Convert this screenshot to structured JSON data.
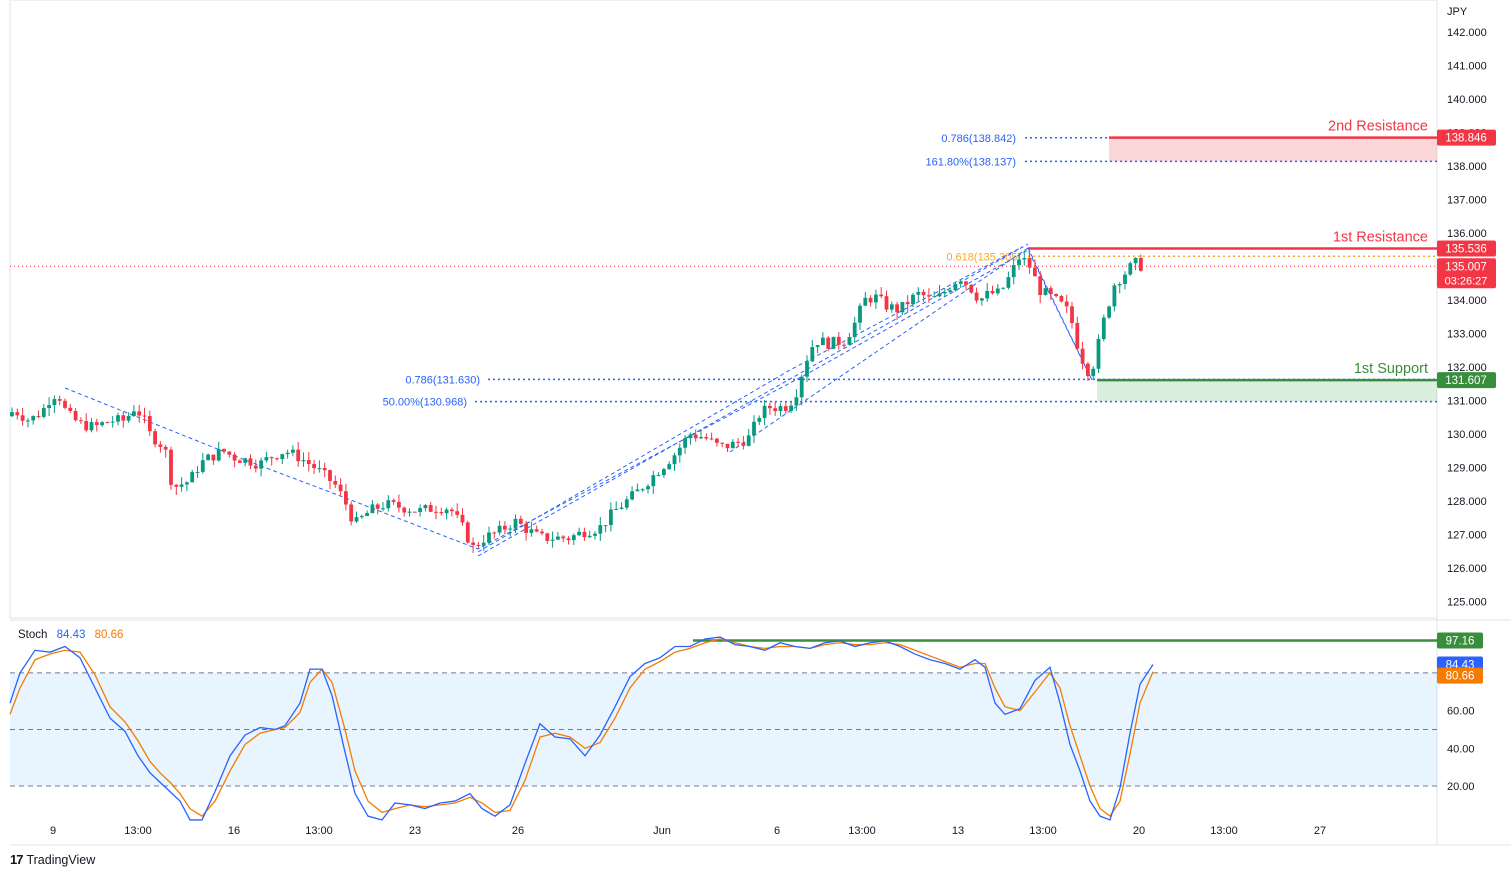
{
  "chart_data": {
    "type": "candlestick",
    "currency": "JPY",
    "price_axis_ticks": [
      "142.000",
      "141.000",
      "140.000",
      "139.000",
      "138.000",
      "137.000",
      "136.000",
      "135.000",
      "134.000",
      "133.000",
      "132.000",
      "131.000",
      "130.000",
      "129.000",
      "128.000",
      "127.000",
      "126.000",
      "125.000"
    ],
    "price_axis_values": [
      142,
      141,
      140,
      139,
      138,
      137,
      136,
      135,
      134,
      133,
      132,
      131,
      130,
      129,
      128,
      127,
      126,
      125
    ],
    "time_axis_labels": [
      "9",
      "13:00",
      "16",
      "13:00",
      "23",
      "26",
      "Jun",
      "6",
      "13:00",
      "13",
      "13:00",
      "20",
      "13:00",
      "27"
    ],
    "ylim": [
      124.5,
      142.7
    ],
    "current_price": "135.007",
    "countdown": "03:26:27",
    "levels": [
      {
        "label": "2nd Resistance",
        "price": "138.846",
        "color": "#f23645"
      },
      {
        "label": "1st Resistance",
        "price": "135.536",
        "color": "#f23645"
      },
      {
        "label": "1st Support",
        "price": "131.607",
        "color": "#388e3c"
      }
    ],
    "fib_labels": [
      {
        "text": "0.786(138.842)",
        "price": 138.842,
        "color": "#2962ff"
      },
      {
        "text": "161.80%(138.137)",
        "price": 138.137,
        "color": "#2962ff"
      },
      {
        "text": "0.618(135.305)",
        "price": 135.305,
        "color": "#f9a825"
      },
      {
        "text": "0.786(131.630)",
        "price": 131.63,
        "color": "#2962ff"
      },
      {
        "text": "50.00%(130.968)",
        "price": 130.968,
        "color": "#2962ff"
      }
    ],
    "price_anchors": [
      [
        0,
        130.3
      ],
      [
        8,
        130.5
      ],
      [
        20,
        130.7
      ],
      [
        35,
        130.4
      ],
      [
        48,
        130.7
      ],
      [
        58,
        131.2
      ],
      [
        65,
        131.1
      ],
      [
        72,
        130.6
      ],
      [
        85,
        130.3
      ],
      [
        100,
        130.2
      ],
      [
        115,
        130.4
      ],
      [
        130,
        130.4
      ],
      [
        140,
        130.8
      ],
      [
        148,
        130.5
      ],
      [
        155,
        130.0
      ],
      [
        170,
        129.6
      ],
      [
        178,
        128.4
      ],
      [
        186,
        128.5
      ],
      [
        195,
        128.6
      ],
      [
        205,
        129.1
      ],
      [
        215,
        129.3
      ],
      [
        228,
        129.5
      ],
      [
        240,
        129.3
      ],
      [
        255,
        129.2
      ],
      [
        265,
        129.1
      ],
      [
        275,
        129.3
      ],
      [
        290,
        129.5
      ],
      [
        305,
        129.3
      ],
      [
        320,
        129.0
      ],
      [
        340,
        128.5
      ],
      [
        350,
        128.0
      ],
      [
        360,
        127.3
      ],
      [
        375,
        127.7
      ],
      [
        390,
        127.9
      ],
      [
        410,
        127.8
      ],
      [
        425,
        127.7
      ],
      [
        440,
        127.8
      ],
      [
        455,
        127.8
      ],
      [
        470,
        127.1
      ],
      [
        478,
        126.6
      ],
      [
        490,
        126.9
      ],
      [
        505,
        127.1
      ],
      [
        520,
        127.4
      ],
      [
        535,
        127.1
      ],
      [
        545,
        126.9
      ],
      [
        560,
        126.9
      ],
      [
        575,
        126.9
      ],
      [
        590,
        127.1
      ],
      [
        605,
        127.2
      ],
      [
        620,
        127.7
      ],
      [
        640,
        128.2
      ],
      [
        660,
        128.8
      ],
      [
        680,
        129.4
      ],
      [
        695,
        130.0
      ],
      [
        710,
        129.9
      ],
      [
        725,
        129.6
      ],
      [
        740,
        129.7
      ],
      [
        755,
        129.9
      ],
      [
        765,
        130.6
      ],
      [
        775,
        130.8
      ],
      [
        790,
        130.8
      ],
      [
        800,
        131.1
      ],
      [
        810,
        132.1
      ],
      [
        820,
        132.8
      ],
      [
        835,
        132.7
      ],
      [
        850,
        132.8
      ],
      [
        860,
        133.3
      ],
      [
        870,
        134.0
      ],
      [
        880,
        134.1
      ],
      [
        893,
        133.8
      ],
      [
        905,
        133.7
      ],
      [
        915,
        134.0
      ],
      [
        925,
        134.2
      ],
      [
        935,
        134.0
      ],
      [
        945,
        134.1
      ],
      [
        955,
        134.4
      ],
      [
        965,
        134.7
      ],
      [
        975,
        134.4
      ],
      [
        985,
        134.0
      ],
      [
        995,
        134.2
      ],
      [
        1005,
        134.2
      ],
      [
        1015,
        134.7
      ],
      [
        1025,
        135.3
      ],
      [
        1035,
        135.0
      ],
      [
        1045,
        134.3
      ],
      [
        1055,
        134.1
      ],
      [
        1065,
        133.9
      ],
      [
        1075,
        133.6
      ],
      [
        1085,
        132.4
      ],
      [
        1095,
        131.8
      ],
      [
        1100,
        132.2
      ],
      [
        1110,
        133.5
      ],
      [
        1120,
        134.5
      ],
      [
        1130,
        134.8
      ],
      [
        1140,
        135.1
      ],
      [
        1148,
        135.0
      ]
    ],
    "stoch_k": [
      [
        0,
        64
      ],
      [
        10,
        80
      ],
      [
        25,
        92
      ],
      [
        40,
        91
      ],
      [
        55,
        94
      ],
      [
        70,
        88
      ],
      [
        85,
        72
      ],
      [
        100,
        56
      ],
      [
        115,
        49
      ],
      [
        128,
        36
      ],
      [
        140,
        27
      ],
      [
        150,
        22
      ],
      [
        160,
        17
      ],
      [
        170,
        12
      ],
      [
        180,
        2
      ],
      [
        192,
        2
      ],
      [
        205,
        17
      ],
      [
        220,
        36
      ],
      [
        235,
        47
      ],
      [
        250,
        51
      ],
      [
        265,
        50
      ],
      [
        275,
        52
      ],
      [
        290,
        64
      ],
      [
        300,
        82
      ],
      [
        312,
        82
      ],
      [
        322,
        68
      ],
      [
        335,
        38
      ],
      [
        345,
        16
      ],
      [
        358,
        4
      ],
      [
        372,
        2
      ],
      [
        385,
        11
      ],
      [
        400,
        10
      ],
      [
        415,
        8
      ],
      [
        430,
        11
      ],
      [
        445,
        12
      ],
      [
        460,
        16
      ],
      [
        472,
        8
      ],
      [
        485,
        4
      ],
      [
        500,
        10
      ],
      [
        515,
        32
      ],
      [
        530,
        53
      ],
      [
        545,
        46
      ],
      [
        560,
        45
      ],
      [
        575,
        36
      ],
      [
        590,
        47
      ],
      [
        605,
        62
      ],
      [
        620,
        78
      ],
      [
        635,
        85
      ],
      [
        650,
        88
      ],
      [
        665,
        94
      ],
      [
        680,
        94
      ],
      [
        695,
        98
      ],
      [
        710,
        99
      ],
      [
        725,
        95
      ],
      [
        740,
        94
      ],
      [
        755,
        92
      ],
      [
        770,
        96
      ],
      [
        785,
        94
      ],
      [
        800,
        93
      ],
      [
        815,
        96
      ],
      [
        830,
        97
      ],
      [
        845,
        94
      ],
      [
        860,
        96
      ],
      [
        875,
        97
      ],
      [
        890,
        94
      ],
      [
        905,
        90
      ],
      [
        920,
        87
      ],
      [
        935,
        85
      ],
      [
        950,
        82
      ],
      [
        965,
        87
      ],
      [
        975,
        83
      ],
      [
        985,
        64
      ],
      [
        995,
        58
      ],
      [
        1010,
        61
      ],
      [
        1025,
        76
      ],
      [
        1040,
        83
      ],
      [
        1050,
        64
      ],
      [
        1060,
        42
      ],
      [
        1070,
        28
      ],
      [
        1080,
        12
      ],
      [
        1090,
        4
      ],
      [
        1100,
        2
      ],
      [
        1110,
        19
      ],
      [
        1120,
        48
      ],
      [
        1130,
        74
      ],
      [
        1143,
        84.43
      ]
    ],
    "stoch_d": [
      [
        0,
        58
      ],
      [
        10,
        72
      ],
      [
        25,
        87
      ],
      [
        40,
        90
      ],
      [
        55,
        92
      ],
      [
        70,
        91
      ],
      [
        85,
        79
      ],
      [
        100,
        62
      ],
      [
        115,
        54
      ],
      [
        128,
        44
      ],
      [
        140,
        33
      ],
      [
        150,
        27
      ],
      [
        160,
        22
      ],
      [
        170,
        16
      ],
      [
        180,
        8
      ],
      [
        192,
        4
      ],
      [
        205,
        12
      ],
      [
        220,
        28
      ],
      [
        235,
        42
      ],
      [
        250,
        48
      ],
      [
        265,
        50
      ],
      [
        275,
        51
      ],
      [
        290,
        59
      ],
      [
        300,
        75
      ],
      [
        312,
        82
      ],
      [
        322,
        75
      ],
      [
        335,
        50
      ],
      [
        345,
        28
      ],
      [
        358,
        12
      ],
      [
        372,
        6
      ],
      [
        385,
        8
      ],
      [
        400,
        10
      ],
      [
        415,
        9
      ],
      [
        430,
        10
      ],
      [
        445,
        11
      ],
      [
        460,
        14
      ],
      [
        472,
        11
      ],
      [
        485,
        6
      ],
      [
        500,
        7
      ],
      [
        515,
        23
      ],
      [
        530,
        46
      ],
      [
        545,
        48
      ],
      [
        560,
        46
      ],
      [
        575,
        40
      ],
      [
        590,
        43
      ],
      [
        605,
        56
      ],
      [
        620,
        72
      ],
      [
        635,
        82
      ],
      [
        650,
        86
      ],
      [
        665,
        91
      ],
      [
        680,
        93
      ],
      [
        695,
        96
      ],
      [
        710,
        98
      ],
      [
        725,
        96
      ],
      [
        740,
        94
      ],
      [
        755,
        93
      ],
      [
        770,
        94
      ],
      [
        785,
        94
      ],
      [
        800,
        93
      ],
      [
        815,
        95
      ],
      [
        830,
        96
      ],
      [
        845,
        95
      ],
      [
        860,
        95
      ],
      [
        875,
        96
      ],
      [
        890,
        95
      ],
      [
        905,
        92
      ],
      [
        920,
        89
      ],
      [
        935,
        86
      ],
      [
        950,
        83
      ],
      [
        965,
        85
      ],
      [
        975,
        85
      ],
      [
        985,
        72
      ],
      [
        995,
        62
      ],
      [
        1010,
        60
      ],
      [
        1025,
        70
      ],
      [
        1040,
        80
      ],
      [
        1050,
        72
      ],
      [
        1060,
        52
      ],
      [
        1070,
        36
      ],
      [
        1080,
        20
      ],
      [
        1090,
        8
      ],
      [
        1100,
        4
      ],
      [
        1110,
        12
      ],
      [
        1120,
        37
      ],
      [
        1130,
        64
      ],
      [
        1143,
        80.66
      ]
    ],
    "stoch": {
      "label": "Stoch",
      "k": "84.43",
      "d": "80.66",
      "k_color": "#2962ff",
      "d_color": "#f57c00",
      "level_line": "97.16",
      "ticks": [
        "60.00",
        "40.00",
        "20.00"
      ],
      "tick_values": [
        60,
        40,
        20
      ],
      "bands": [
        80,
        50,
        20
      ]
    }
  },
  "brand": {
    "name": "TradingView",
    "logo": "17"
  }
}
